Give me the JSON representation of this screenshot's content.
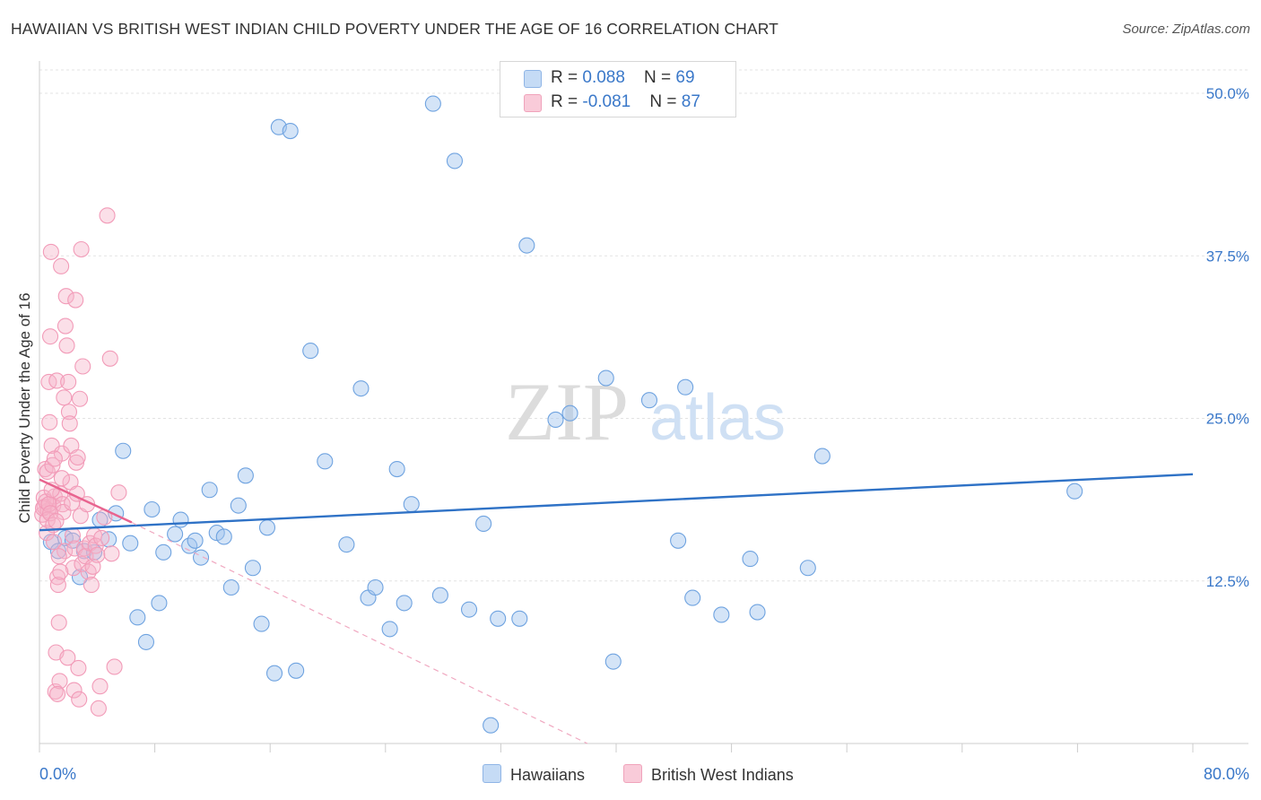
{
  "header": {
    "title": "HAWAIIAN VS BRITISH WEST INDIAN CHILD POVERTY UNDER THE AGE OF 16 CORRELATION CHART",
    "source": "Source: ZipAtlas.com"
  },
  "watermark": {
    "zip": "ZIP",
    "atlas": "atlas"
  },
  "legend": {
    "rows": [
      {
        "r_label": "R = ",
        "r_value": "0.088",
        "n_label": "N = ",
        "n_value": "69",
        "color": "#9fc3ee"
      },
      {
        "r_label": "R = ",
        "r_value": "-0.081",
        "n_label": "N = ",
        "n_value": "87",
        "color": "#f5b3c8"
      }
    ]
  },
  "chart_data": {
    "type": "scatter",
    "xlabel": "",
    "ylabel": "Child Poverty Under the Age of 16",
    "xlim": [
      0,
      80
    ],
    "ylim": [
      0,
      52
    ],
    "x_tick_labels": [
      "0.0%",
      "80.0%"
    ],
    "y_ticks": [
      12.5,
      25.0,
      37.5,
      50.0
    ],
    "y_tick_labels": [
      "12.5%",
      "25.0%",
      "37.5%",
      "50.0%"
    ],
    "grid": true,
    "legend_position": "top-center",
    "series": [
      {
        "name": "Hawaiians",
        "color": "#6fa3e0",
        "line_color": "#2f72c6",
        "trend": {
          "x": [
            0,
            80
          ],
          "y": [
            16.4,
            20.7
          ]
        },
        "points": [
          [
            0.8,
            15.5
          ],
          [
            1.3,
            14.8
          ],
          [
            1.8,
            15.8
          ],
          [
            2.3,
            15.6
          ],
          [
            2.8,
            12.8
          ],
          [
            3.1,
            14.8
          ],
          [
            3.8,
            14.7
          ],
          [
            4.2,
            17.2
          ],
          [
            4.8,
            15.7
          ],
          [
            5.3,
            17.7
          ],
          [
            5.8,
            22.5
          ],
          [
            6.3,
            15.4
          ],
          [
            6.8,
            9.7
          ],
          [
            7.4,
            7.8
          ],
          [
            7.8,
            18.0
          ],
          [
            8.3,
            10.8
          ],
          [
            8.6,
            14.7
          ],
          [
            9.4,
            16.1
          ],
          [
            9.8,
            17.2
          ],
          [
            10.4,
            15.2
          ],
          [
            10.8,
            15.6
          ],
          [
            11.2,
            14.3
          ],
          [
            11.8,
            19.5
          ],
          [
            12.3,
            16.2
          ],
          [
            12.8,
            15.9
          ],
          [
            13.3,
            12.0
          ],
          [
            13.8,
            18.3
          ],
          [
            14.3,
            20.6
          ],
          [
            14.8,
            13.5
          ],
          [
            15.4,
            9.2
          ],
          [
            15.8,
            16.6
          ],
          [
            16.3,
            5.4
          ],
          [
            16.6,
            47.4
          ],
          [
            17.4,
            47.1
          ],
          [
            17.8,
            5.6
          ],
          [
            18.8,
            30.2
          ],
          [
            19.8,
            21.7
          ],
          [
            21.3,
            15.3
          ],
          [
            22.3,
            27.3
          ],
          [
            22.8,
            11.2
          ],
          [
            23.3,
            12.0
          ],
          [
            24.3,
            8.8
          ],
          [
            24.8,
            21.1
          ],
          [
            25.3,
            10.8
          ],
          [
            25.8,
            18.4
          ],
          [
            27.3,
            49.2
          ],
          [
            27.8,
            11.4
          ],
          [
            28.8,
            44.8
          ],
          [
            29.8,
            10.3
          ],
          [
            30.8,
            16.9
          ],
          [
            31.3,
            1.4
          ],
          [
            31.8,
            9.6
          ],
          [
            33.3,
            9.6
          ],
          [
            33.8,
            38.3
          ],
          [
            35.8,
            24.9
          ],
          [
            36.8,
            25.4
          ],
          [
            39.3,
            28.1
          ],
          [
            39.8,
            6.3
          ],
          [
            42.3,
            26.4
          ],
          [
            44.3,
            15.6
          ],
          [
            44.8,
            27.4
          ],
          [
            45.3,
            11.2
          ],
          [
            47.3,
            9.9
          ],
          [
            49.3,
            14.2
          ],
          [
            49.8,
            10.1
          ],
          [
            53.3,
            13.5
          ],
          [
            54.3,
            22.1
          ],
          [
            71.8,
            19.4
          ]
        ]
      },
      {
        "name": "British West Indians",
        "color": "#f29bb8",
        "line_color": "#e8648f",
        "trend": {
          "x": [
            0,
            6.4
          ],
          "y": [
            20.3,
            17.0
          ]
        },
        "trend_extension": {
          "x": [
            6.4,
            38.0
          ],
          "y": [
            17.0,
            0.0
          ]
        },
        "points": [
          [
            0.2,
            17.6
          ],
          [
            0.3,
            18.9
          ],
          [
            0.35,
            18.2
          ],
          [
            0.4,
            21.1
          ],
          [
            0.5,
            16.2
          ],
          [
            0.55,
            20.9
          ],
          [
            0.6,
            17.9
          ],
          [
            0.65,
            27.8
          ],
          [
            0.7,
            24.7
          ],
          [
            0.75,
            31.3
          ],
          [
            0.8,
            37.8
          ],
          [
            0.85,
            22.9
          ],
          [
            0.9,
            21.4
          ],
          [
            0.95,
            18.3
          ],
          [
            1.0,
            15.5
          ],
          [
            1.05,
            19.0
          ],
          [
            1.1,
            4.0
          ],
          [
            1.15,
            7.0
          ],
          [
            1.2,
            27.9
          ],
          [
            1.25,
            12.8
          ],
          [
            1.3,
            12.2
          ],
          [
            1.35,
            9.3
          ],
          [
            1.4,
            4.8
          ],
          [
            1.45,
            19.2
          ],
          [
            1.5,
            36.7
          ],
          [
            1.55,
            22.3
          ],
          [
            1.6,
            18.4
          ],
          [
            1.65,
            17.8
          ],
          [
            1.7,
            26.6
          ],
          [
            1.75,
            14.8
          ],
          [
            1.8,
            32.1
          ],
          [
            1.85,
            34.4
          ],
          [
            1.9,
            30.6
          ],
          [
            1.95,
            6.6
          ],
          [
            2.0,
            27.8
          ],
          [
            2.05,
            25.5
          ],
          [
            2.1,
            24.6
          ],
          [
            2.15,
            20.1
          ],
          [
            2.2,
            22.9
          ],
          [
            2.25,
            18.5
          ],
          [
            2.3,
            16.0
          ],
          [
            2.35,
            13.5
          ],
          [
            2.4,
            4.1
          ],
          [
            2.45,
            15.0
          ],
          [
            2.5,
            34.1
          ],
          [
            2.55,
            21.6
          ],
          [
            2.6,
            19.2
          ],
          [
            2.65,
            22.0
          ],
          [
            2.7,
            5.8
          ],
          [
            2.75,
            3.4
          ],
          [
            2.8,
            26.5
          ],
          [
            2.85,
            17.5
          ],
          [
            2.9,
            38.0
          ],
          [
            2.95,
            13.8
          ],
          [
            3.0,
            29.0
          ],
          [
            3.1,
            15.0
          ],
          [
            3.2,
            14.4
          ],
          [
            3.3,
            18.4
          ],
          [
            3.4,
            13.2
          ],
          [
            3.5,
            15.4
          ],
          [
            3.6,
            12.2
          ],
          [
            3.7,
            13.6
          ],
          [
            3.8,
            16.0
          ],
          [
            3.9,
            15.2
          ],
          [
            4.0,
            14.5
          ],
          [
            4.1,
            2.7
          ],
          [
            4.2,
            4.4
          ],
          [
            4.3,
            15.8
          ],
          [
            4.5,
            17.4
          ],
          [
            4.7,
            40.6
          ],
          [
            4.9,
            29.6
          ],
          [
            5.0,
            14.6
          ],
          [
            5.2,
            5.9
          ],
          [
            5.5,
            19.3
          ],
          [
            0.25,
            18.1
          ],
          [
            0.45,
            18.6
          ],
          [
            0.55,
            17.2
          ],
          [
            0.65,
            18.4
          ],
          [
            0.75,
            17.7
          ],
          [
            0.85,
            19.5
          ],
          [
            0.95,
            16.8
          ],
          [
            1.05,
            21.9
          ],
          [
            1.15,
            17.1
          ],
          [
            1.25,
            3.8
          ],
          [
            1.35,
            14.4
          ],
          [
            1.45,
            13.2
          ],
          [
            1.55,
            20.4
          ]
        ]
      }
    ]
  }
}
